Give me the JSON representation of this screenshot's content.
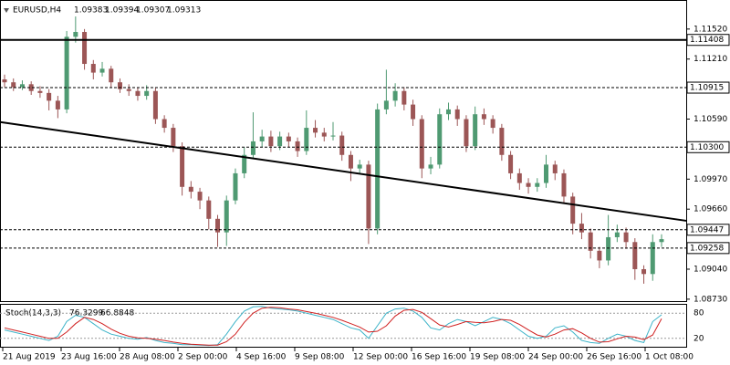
{
  "chart_data": {
    "type": "candlestick",
    "symbol": "EURUSD,H4",
    "quote": [
      1.09383,
      1.09394,
      1.09307,
      1.09313
    ],
    "ylim": [
      1.0871,
      1.1182
    ],
    "yticks": [
      {
        "value": 1.1152,
        "label": "1.11520"
      },
      {
        "value": 1.1121,
        "label": "1.11210"
      },
      {
        "value": 1.1059,
        "label": "1.10590"
      },
      {
        "value": 1.0997,
        "label": "1.09970"
      },
      {
        "value": 1.0966,
        "label": "1.09660"
      },
      {
        "value": 1.0904,
        "label": "1.09040"
      },
      {
        "value": 1.0873,
        "label": "1.08730"
      }
    ],
    "levels": [
      {
        "value": 1.11408,
        "label": "1.11408",
        "style": "solid"
      },
      {
        "value": 1.10915,
        "label": "1.10915",
        "style": "dashed"
      },
      {
        "value": 1.103,
        "label": "1.10300",
        "style": "dashed"
      },
      {
        "value": 1.09447,
        "label": "1.09447",
        "style": "dashed"
      },
      {
        "value": 1.09258,
        "label": "1.09258",
        "style": "dashed"
      }
    ],
    "trendline": [
      1.1056,
      1.0954
    ],
    "up_color": "#4f9a72",
    "down_color": "#9c5656",
    "ohlc": [
      [
        1.11,
        1.1105,
        1.1092,
        1.1097
      ],
      [
        1.1097,
        1.1101,
        1.1088,
        1.1092
      ],
      [
        1.1092,
        1.1099,
        1.1089,
        1.1095
      ],
      [
        1.1095,
        1.1098,
        1.1084,
        1.1088
      ],
      [
        1.1088,
        1.1093,
        1.1081,
        1.1086
      ],
      [
        1.1086,
        1.109,
        1.1068,
        1.1078
      ],
      [
        1.1078,
        1.1083,
        1.106,
        1.1069
      ],
      [
        1.1069,
        1.115,
        1.1065,
        1.1144
      ],
      [
        1.1144,
        1.1165,
        1.1138,
        1.1149
      ],
      [
        1.1149,
        1.1152,
        1.111,
        1.1116
      ],
      [
        1.1116,
        1.112,
        1.11,
        1.1107
      ],
      [
        1.1107,
        1.1118,
        1.1103,
        1.1111
      ],
      [
        1.1111,
        1.1114,
        1.1092,
        1.1097
      ],
      [
        1.1097,
        1.1101,
        1.1086,
        1.109
      ],
      [
        1.109,
        1.1095,
        1.1083,
        1.1088
      ],
      [
        1.1088,
        1.1092,
        1.1078,
        1.1083
      ],
      [
        1.1083,
        1.1094,
        1.1079,
        1.1088
      ],
      [
        1.1088,
        1.1091,
        1.1054,
        1.1059
      ],
      [
        1.1059,
        1.1063,
        1.1045,
        1.105
      ],
      [
        1.105,
        1.1054,
        1.1025,
        1.1031
      ],
      [
        1.1031,
        1.1035,
        1.098,
        1.0989
      ],
      [
        1.0989,
        1.0995,
        1.0977,
        1.0984
      ],
      [
        1.0984,
        1.0988,
        1.0966,
        1.0975
      ],
      [
        1.0975,
        1.0979,
        1.0945,
        1.0956
      ],
      [
        1.0956,
        1.096,
        1.0927,
        1.0942
      ],
      [
        1.0942,
        1.098,
        1.0928,
        1.0975
      ],
      [
        1.0975,
        1.1008,
        1.0971,
        1.1003
      ],
      [
        1.1003,
        1.103,
        1.0998,
        1.1022
      ],
      [
        1.1022,
        1.1066,
        1.1018,
        1.1036
      ],
      [
        1.1036,
        1.1048,
        1.103,
        1.1041
      ],
      [
        1.1041,
        1.1047,
        1.1025,
        1.1031
      ],
      [
        1.1031,
        1.1046,
        1.1027,
        1.1041
      ],
      [
        1.1041,
        1.1045,
        1.103,
        1.1036
      ],
      [
        1.1036,
        1.104,
        1.102,
        1.1026
      ],
      [
        1.1026,
        1.1068,
        1.1022,
        1.105
      ],
      [
        1.105,
        1.1058,
        1.104,
        1.1045
      ],
      [
        1.1045,
        1.105,
        1.1036,
        1.1041
      ],
      [
        1.1041,
        1.1056,
        1.1037,
        1.1042
      ],
      [
        1.1042,
        1.1046,
        1.1016,
        1.1022
      ],
      [
        1.1022,
        1.1026,
        1.0995,
        1.1008
      ],
      [
        1.1008,
        1.1017,
        1.1003,
        1.1012
      ],
      [
        1.1012,
        1.1016,
        1.093,
        1.0946
      ],
      [
        1.0946,
        1.1075,
        1.094,
        1.1069
      ],
      [
        1.1069,
        1.111,
        1.1064,
        1.1078
      ],
      [
        1.1078,
        1.1096,
        1.1072,
        1.1088
      ],
      [
        1.1088,
        1.1092,
        1.1068,
        1.1074
      ],
      [
        1.1074,
        1.1079,
        1.1052,
        1.1059
      ],
      [
        1.1059,
        1.1063,
        1.0998,
        1.1008
      ],
      [
        1.1008,
        1.102,
        1.1002,
        1.1012
      ],
      [
        1.1012,
        1.107,
        1.1008,
        1.1064
      ],
      [
        1.1064,
        1.1076,
        1.1058,
        1.1069
      ],
      [
        1.1069,
        1.1073,
        1.1052,
        1.1059
      ],
      [
        1.1059,
        1.1063,
        1.1025,
        1.1031
      ],
      [
        1.1031,
        1.1072,
        1.1027,
        1.1064
      ],
      [
        1.1064,
        1.107,
        1.1053,
        1.1059
      ],
      [
        1.1059,
        1.1063,
        1.1044,
        1.105
      ],
      [
        1.105,
        1.1054,
        1.1016,
        1.1022
      ],
      [
        1.1022,
        1.1026,
        1.0997,
        1.1003
      ],
      [
        1.1003,
        1.1008,
        1.0986,
        1.0993
      ],
      [
        1.0993,
        1.0998,
        1.0982,
        1.0989
      ],
      [
        1.0989,
        1.0998,
        1.0984,
        1.0993
      ],
      [
        1.0993,
        1.1022,
        1.0988,
        1.1012
      ],
      [
        1.1012,
        1.1016,
        1.0996,
        1.1003
      ],
      [
        1.1003,
        1.1007,
        1.0972,
        1.0979
      ],
      [
        1.0979,
        1.0983,
        1.094,
        1.0951
      ],
      [
        1.0951,
        1.0962,
        1.0935,
        1.0942
      ],
      [
        1.0942,
        1.0946,
        1.0915,
        1.0923
      ],
      [
        1.0923,
        1.0927,
        1.0905,
        1.0913
      ],
      [
        1.0913,
        1.096,
        1.0908,
        1.0937
      ],
      [
        1.0937,
        1.095,
        1.0932,
        1.0942
      ],
      [
        1.0942,
        1.0947,
        1.0925,
        1.0932
      ],
      [
        1.0932,
        1.0936,
        1.0893,
        1.0904
      ],
      [
        1.0904,
        1.0908,
        1.0889,
        1.0899
      ],
      [
        1.0899,
        1.094,
        1.0892,
        1.0932
      ],
      [
        1.0932,
        1.094,
        1.0927,
        1.0935
      ]
    ],
    "xlabels": [
      "21 Aug 2019",
      "23 Aug 16:00",
      "28 Aug 08:00",
      "2 Sep 00:00",
      "4 Sep 16:00",
      "9 Sep 08:00",
      "12 Sep 00:00",
      "16 Sep 16:00",
      "19 Sep 08:00",
      "24 Sep 00:00",
      "26 Sep 16:00",
      "1 Oct 08:00"
    ],
    "indicator": {
      "name": "Stoch(14,3,3)",
      "ylim": [
        0,
        100
      ],
      "levels": [
        80,
        20
      ],
      "series": [
        {
          "color": "#3cb3c8",
          "values": [
            40,
            35,
            30,
            25,
            20,
            15,
            25,
            60,
            75,
            70,
            55,
            40,
            30,
            25,
            20,
            18,
            22,
            15,
            10,
            8,
            5,
            5,
            4,
            3,
            5,
            30,
            60,
            85,
            95,
            96,
            92,
            90,
            88,
            85,
            80,
            75,
            70,
            65,
            55,
            45,
            40,
            20,
            50,
            80,
            90,
            92,
            85,
            70,
            45,
            40,
            55,
            65,
            60,
            50,
            60,
            70,
            65,
            55,
            40,
            25,
            20,
            25,
            45,
            50,
            35,
            15,
            10,
            8,
            20,
            30,
            25,
            15,
            10,
            60,
            76.3299
          ]
        },
        {
          "color": "#d02020",
          "values": [
            45,
            40,
            35,
            30,
            25,
            20,
            20,
            35,
            55,
            70,
            65,
            55,
            42,
            32,
            25,
            21,
            20,
            18,
            15,
            11,
            8,
            6,
            5,
            4,
            4,
            12,
            30,
            58,
            80,
            92,
            94,
            93,
            90,
            88,
            84,
            80,
            75,
            70,
            63,
            55,
            47,
            35,
            37,
            50,
            73,
            87,
            89,
            82,
            67,
            52,
            47,
            53,
            60,
            58,
            57,
            60,
            65,
            63,
            53,
            40,
            28,
            23,
            30,
            40,
            43,
            33,
            20,
            11,
            12,
            19,
            25,
            23,
            17,
            28,
            66.8848
          ]
        }
      ]
    }
  }
}
